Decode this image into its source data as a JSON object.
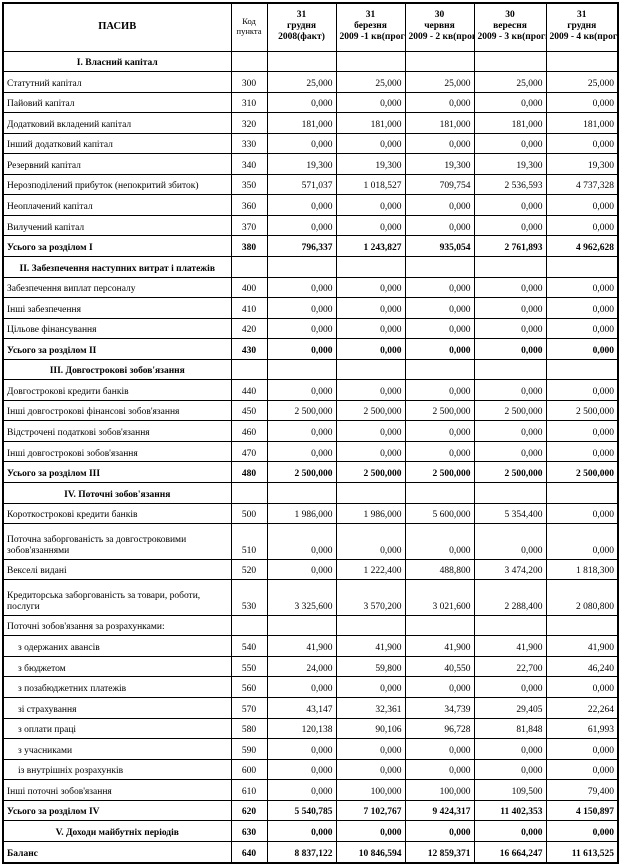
{
  "colors": {
    "border": "#000000",
    "background": "#ffffff"
  },
  "table": {
    "header": {
      "label": "ПАСИВ",
      "code": [
        "Код",
        "пункта"
      ],
      "periods": [
        [
          "31",
          "грудня",
          "2008(факт)"
        ],
        [
          "31",
          "березня",
          "2009 -1 кв(прогн)"
        ],
        [
          "30",
          "червня",
          "2009 - 2 кв(прогн)"
        ],
        [
          "30",
          "вересня",
          "2009 - 3 кв(прогн)"
        ],
        [
          "31",
          "грудня",
          "2009 - 4 кв(прогн)"
        ]
      ]
    },
    "rows": [
      {
        "type": "section",
        "label": "I. Власний капітал",
        "code": "",
        "values": [
          "",
          "",
          "",
          "",
          ""
        ]
      },
      {
        "type": "data",
        "label": "Статутний капітал",
        "code": "300",
        "values": [
          "25,000",
          "25,000",
          "25,000",
          "25,000",
          "25,000"
        ]
      },
      {
        "type": "data",
        "label": "Пайовий капітал",
        "code": "310",
        "values": [
          "0,000",
          "0,000",
          "0,000",
          "0,000",
          "0,000"
        ]
      },
      {
        "type": "data",
        "label": "Додатковий вкладений капітал",
        "code": "320",
        "values": [
          "181,000",
          "181,000",
          "181,000",
          "181,000",
          "181,000"
        ]
      },
      {
        "type": "data",
        "label": "Інший додатковий капітал",
        "code": "330",
        "values": [
          "0,000",
          "0,000",
          "0,000",
          "0,000",
          "0,000"
        ]
      },
      {
        "type": "data",
        "label": "Резервний капітал",
        "code": "340",
        "values": [
          "19,300",
          "19,300",
          "19,300",
          "19,300",
          "19,300"
        ]
      },
      {
        "type": "data",
        "label": "Нерозподілений прибуток (непокритий збиток)",
        "code": "350",
        "values": [
          "571,037",
          "1 018,527",
          "709,754",
          "2 536,593",
          "4 737,328"
        ]
      },
      {
        "type": "data",
        "label": "Неоплачений капітал",
        "code": "360",
        "values": [
          "0,000",
          "0,000",
          "0,000",
          "0,000",
          "0,000"
        ]
      },
      {
        "type": "data",
        "label": "Вилучений капітал",
        "code": "370",
        "values": [
          "0,000",
          "0,000",
          "0,000",
          "0,000",
          "0,000"
        ]
      },
      {
        "type": "total",
        "label": "Усього за розділом I",
        "code": "380",
        "values": [
          "796,337",
          "1 243,827",
          "935,054",
          "2 761,893",
          "4 962,628"
        ]
      },
      {
        "type": "section",
        "label": "II. Забезпечення наступних витрат і платежів",
        "code": "",
        "values": [
          "",
          "",
          "",
          "",
          ""
        ]
      },
      {
        "type": "data",
        "label": "Забезпечення виплат персоналу",
        "code": "400",
        "values": [
          "0,000",
          "0,000",
          "0,000",
          "0,000",
          "0,000"
        ]
      },
      {
        "type": "data",
        "label": "Інші забезпечення",
        "code": "410",
        "values": [
          "0,000",
          "0,000",
          "0,000",
          "0,000",
          "0,000"
        ]
      },
      {
        "type": "data",
        "label": "Цільове фінансування",
        "code": "420",
        "values": [
          "0,000",
          "0,000",
          "0,000",
          "0,000",
          "0,000"
        ]
      },
      {
        "type": "total",
        "label": "Усього за розділом II",
        "code": "430",
        "values": [
          "0,000",
          "0,000",
          "0,000",
          "0,000",
          "0,000"
        ]
      },
      {
        "type": "section",
        "label": "III. Довгострокові зобов'язання",
        "code": "",
        "values": [
          "",
          "",
          "",
          "",
          ""
        ]
      },
      {
        "type": "data",
        "label": "Довгострокові кредити банків",
        "code": "440",
        "values": [
          "0,000",
          "0,000",
          "0,000",
          "0,000",
          "0,000"
        ]
      },
      {
        "type": "data",
        "label": "Інші довгострокові фінансові зобов'язання",
        "code": "450",
        "values": [
          "2 500,000",
          "2 500,000",
          "2 500,000",
          "2 500,000",
          "2 500,000"
        ]
      },
      {
        "type": "data",
        "label": "Відстрочені податкові зобов'язання",
        "code": "460",
        "values": [
          "0,000",
          "0,000",
          "0,000",
          "0,000",
          "0,000"
        ]
      },
      {
        "type": "data",
        "label": "Інші довгострокові зобов'язання",
        "code": "470",
        "values": [
          "0,000",
          "0,000",
          "0,000",
          "0,000",
          "0,000"
        ]
      },
      {
        "type": "total",
        "label": "Усього за розділом III",
        "code": "480",
        "values": [
          "2 500,000",
          "2 500,000",
          "2 500,000",
          "2 500,000",
          "2 500,000"
        ]
      },
      {
        "type": "section",
        "label": "IV. Поточні зобов'язання",
        "code": "",
        "values": [
          "",
          "",
          "",
          "",
          ""
        ]
      },
      {
        "type": "data",
        "label": "Короткострокові кредити банків",
        "code": "500",
        "values": [
          "1 986,000",
          "1 986,000",
          "5 600,000",
          "5 354,400",
          "0,000"
        ]
      },
      {
        "type": "data",
        "label": "Поточна заборгованість за довгостроковими зобов'язаннями",
        "code": "510",
        "values": [
          "0,000",
          "0,000",
          "0,000",
          "0,000",
          "0,000"
        ]
      },
      {
        "type": "data",
        "label": "Векселі видані",
        "code": "520",
        "values": [
          "0,000",
          "1 222,400",
          "488,800",
          "3 474,200",
          "1 818,300"
        ]
      },
      {
        "type": "data",
        "label": "Кредиторська заборгованість за товари, роботи, послуги",
        "code": "530",
        "values": [
          "3 325,600",
          "3 570,200",
          "3 021,600",
          "2 288,400",
          "2 080,800"
        ]
      },
      {
        "type": "group",
        "label": "Поточні зобов'язання за розрахунками:",
        "code": "",
        "values": [
          "",
          "",
          "",
          "",
          ""
        ]
      },
      {
        "type": "indent",
        "label": "з одержаних авансів",
        "code": "540",
        "values": [
          "41,900",
          "41,900",
          "41,900",
          "41,900",
          "41,900"
        ]
      },
      {
        "type": "indent",
        "label": "з бюджетом",
        "code": "550",
        "values": [
          "24,000",
          "59,800",
          "40,550",
          "22,700",
          "46,240"
        ]
      },
      {
        "type": "indent",
        "label": "з позабюджетних платежів",
        "code": "560",
        "values": [
          "0,000",
          "0,000",
          "0,000",
          "0,000",
          "0,000"
        ]
      },
      {
        "type": "indent",
        "label": "зі страхування",
        "code": "570",
        "values": [
          "43,147",
          "32,361",
          "34,739",
          "29,405",
          "22,264"
        ]
      },
      {
        "type": "indent",
        "label": "з оплати праці",
        "code": "580",
        "values": [
          "120,138",
          "90,106",
          "96,728",
          "81,848",
          "61,993"
        ]
      },
      {
        "type": "indent",
        "label": "з учасниками",
        "code": "590",
        "values": [
          "0,000",
          "0,000",
          "0,000",
          "0,000",
          "0,000"
        ]
      },
      {
        "type": "indent",
        "label": "із внутрішніх розрахунків",
        "code": "600",
        "values": [
          "0,000",
          "0,000",
          "0,000",
          "0,000",
          "0,000"
        ]
      },
      {
        "type": "data",
        "label": "Інші поточні зобов'язання",
        "code": "610",
        "values": [
          "0,000",
          "100,000",
          "100,000",
          "109,500",
          "79,400"
        ]
      },
      {
        "type": "total",
        "label": "Усього за розділом IV",
        "code": "620",
        "values": [
          "5 540,785",
          "7 102,767",
          "9 424,317",
          "11 402,353",
          "4 150,897"
        ]
      },
      {
        "type": "section-total",
        "label": "V. Доходи майбутніх періодів",
        "code": "630",
        "values": [
          "0,000",
          "0,000",
          "0,000",
          "0,000",
          "0,000"
        ]
      },
      {
        "type": "total",
        "label": "Баланс",
        "code": "640",
        "values": [
          "8 837,122",
          "10 846,594",
          "12 859,371",
          "16 664,247",
          "11 613,525"
        ]
      }
    ]
  }
}
